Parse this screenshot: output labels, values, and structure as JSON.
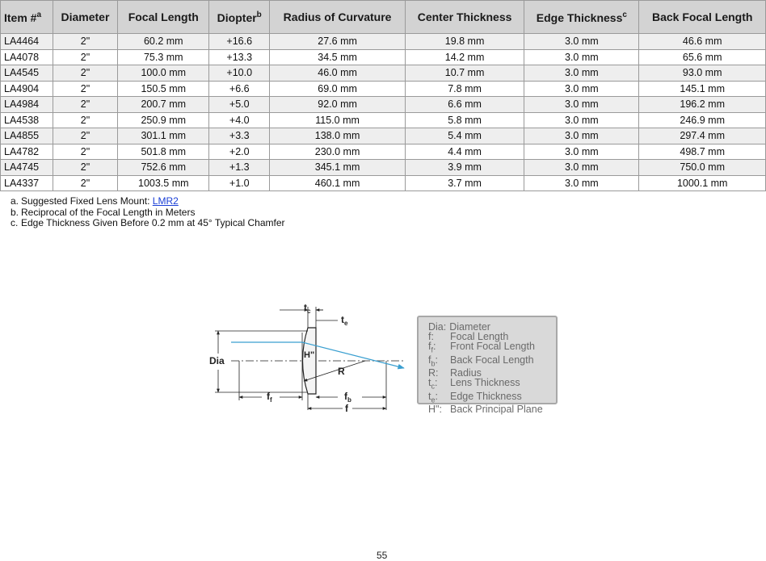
{
  "table": {
    "headers": [
      {
        "text": "Item #",
        "sup": "a"
      },
      {
        "text": "Diameter",
        "sup": ""
      },
      {
        "text": "Focal Length",
        "sup": ""
      },
      {
        "text": "Diopter",
        "sup": "b"
      },
      {
        "text": "Radius of Curvature",
        "sup": ""
      },
      {
        "text": "Center Thickness",
        "sup": ""
      },
      {
        "text": "Edge Thickness",
        "sup": "c"
      },
      {
        "text": "Back Focal Length",
        "sup": ""
      }
    ],
    "rows": [
      [
        "LA4464",
        "2\"",
        "60.2 mm",
        "+16.6",
        "27.6 mm",
        "19.8 mm",
        "3.0 mm",
        "46.6 mm"
      ],
      [
        "LA4078",
        "2\"",
        "75.3 mm",
        "+13.3",
        "34.5 mm",
        "14.2 mm",
        "3.0 mm",
        "65.6 mm"
      ],
      [
        "LA4545",
        "2\"",
        "100.0 mm",
        "+10.0",
        "46.0 mm",
        "10.7 mm",
        "3.0 mm",
        "93.0 mm"
      ],
      [
        "LA4904",
        "2\"",
        "150.5 mm",
        "+6.6",
        "69.0 mm",
        "7.8 mm",
        "3.0 mm",
        "145.1 mm"
      ],
      [
        "LA4984",
        "2\"",
        "200.7 mm",
        "+5.0",
        "92.0 mm",
        "6.6 mm",
        "3.0 mm",
        "196.2 mm"
      ],
      [
        "LA4538",
        "2\"",
        "250.9 mm",
        "+4.0",
        "115.0 mm",
        "5.8 mm",
        "3.0 mm",
        "246.9 mm"
      ],
      [
        "LA4855",
        "2\"",
        "301.1 mm",
        "+3.3",
        "138.0 mm",
        "5.4 mm",
        "3.0 mm",
        "297.4 mm"
      ],
      [
        "LA4782",
        "2\"",
        "501.8 mm",
        "+2.0",
        "230.0 mm",
        "4.4 mm",
        "3.0 mm",
        "498.7 mm"
      ],
      [
        "LA4745",
        "2\"",
        "752.6 mm",
        "+1.3",
        "345.1 mm",
        "3.9 mm",
        "3.0 mm",
        "750.0 mm"
      ],
      [
        "LA4337",
        "2\"",
        "1003.5 mm",
        "+1.0",
        "460.1 mm",
        "3.7 mm",
        "3.0 mm",
        "1000.1 mm"
      ]
    ]
  },
  "notes": {
    "a_label": "a.",
    "a_text": "Suggested Fixed Lens Mount: ",
    "a_link": "LMR2",
    "b_label": "b.",
    "b_text": "Reciprocal of the Focal Length in Meters",
    "c_label": "c.",
    "c_text": "Edge Thickness Given Before 0.2 mm at 45° Typical Chamfer"
  },
  "diagram": {
    "tc_main": "t",
    "tc_sub": "c",
    "te_main": "t",
    "te_sub": "e",
    "h_label": "H\"",
    "dia_label": "Dia",
    "r_label": "R",
    "ff_main": "f",
    "ff_sub": "f",
    "fb_main": "f",
    "fb_sub": "b",
    "f_label": "f",
    "ray_color": "#3a9fd0"
  },
  "legend": {
    "items": [
      {
        "key_main": "Dia:",
        "key_sub": "",
        "key_end": "",
        "text": "Diameter"
      },
      {
        "key_main": "f:",
        "key_sub": "",
        "key_end": "",
        "text": "Focal Length"
      },
      {
        "key_main": "f",
        "key_sub": "f",
        "key_end": ":",
        "text": "Front Focal Length"
      },
      {
        "key_main": "f",
        "key_sub": "b",
        "key_end": ":",
        "text": "Back Focal Length"
      },
      {
        "key_main": "R:",
        "key_sub": "",
        "key_end": "",
        "text": "Radius"
      },
      {
        "key_main": "t",
        "key_sub": "c",
        "key_end": ":",
        "text": "Lens Thickness"
      },
      {
        "key_main": "t",
        "key_sub": "e",
        "key_end": ":",
        "text": "Edge Thickness"
      },
      {
        "key_main": "H\":",
        "key_sub": "",
        "key_end": "",
        "text": "Back Principal Plane"
      }
    ]
  },
  "page_number": "55"
}
